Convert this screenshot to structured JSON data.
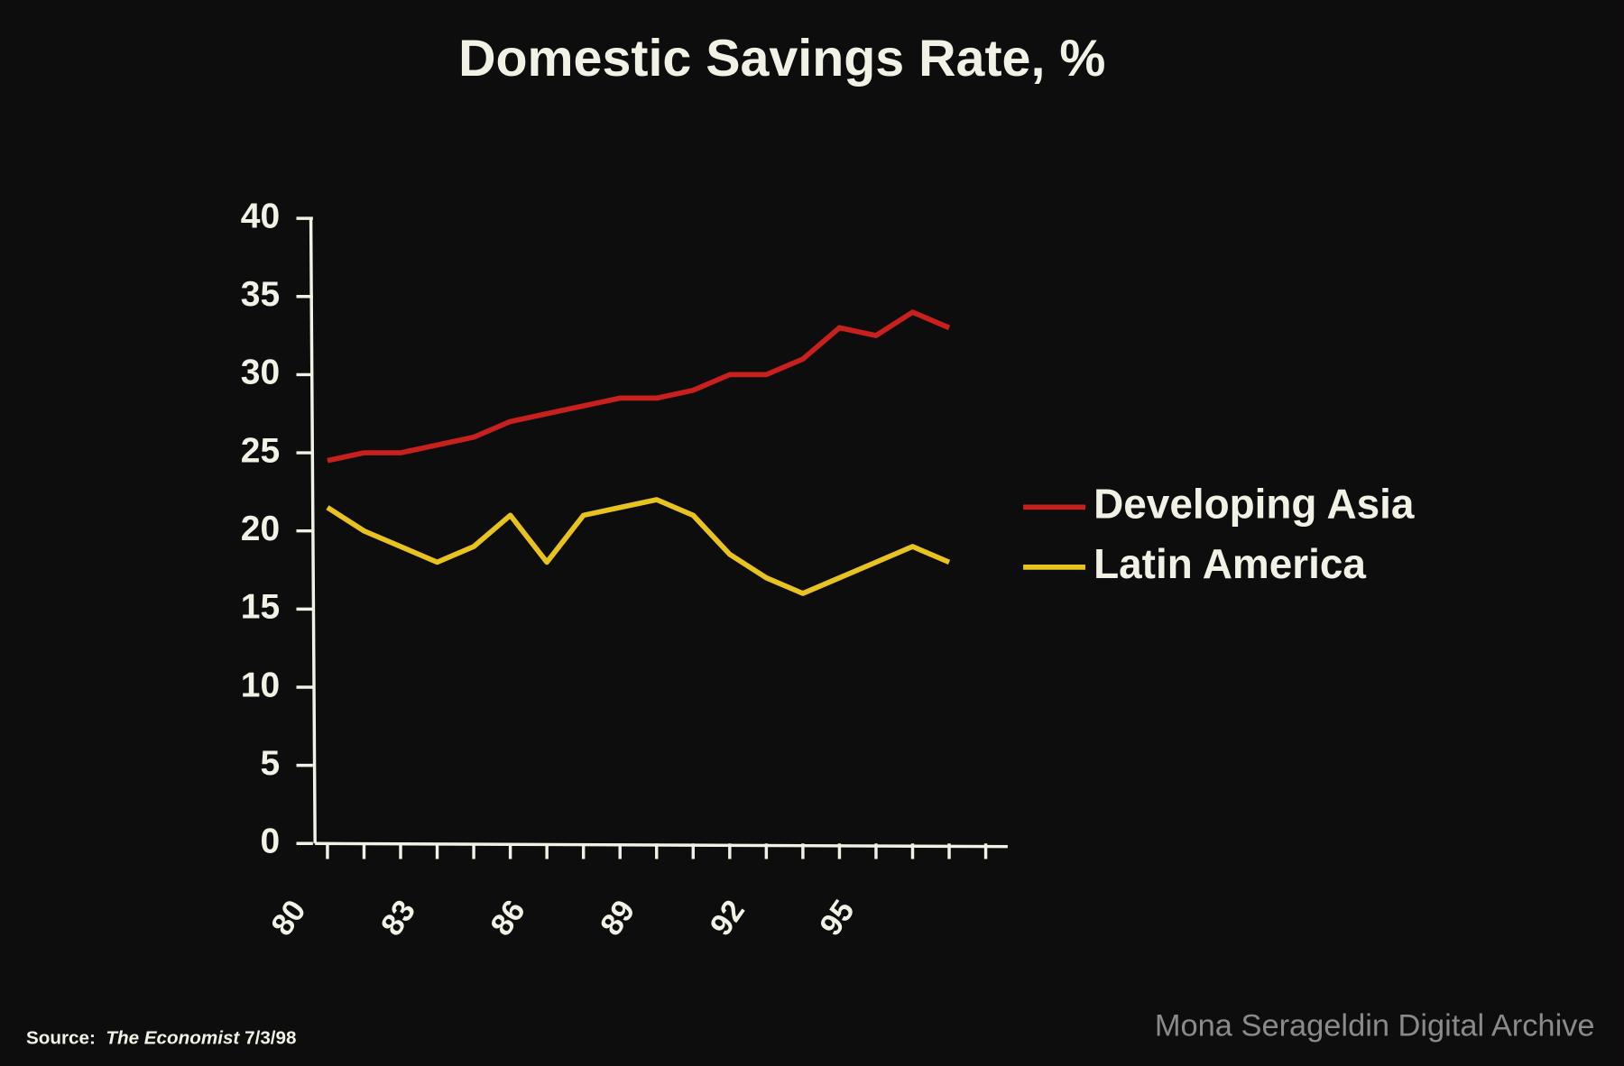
{
  "chart_data": {
    "type": "line",
    "title": "Domestic Savings Rate, %",
    "x": [
      1980,
      1981,
      1982,
      1983,
      1984,
      1985,
      1986,
      1987,
      1988,
      1989,
      1990,
      1991,
      1992,
      1993,
      1994,
      1995,
      1996,
      1997
    ],
    "series": [
      {
        "name": "Developing Asia",
        "color": "#c8201c",
        "values": [
          24.5,
          25,
          25,
          25.5,
          26,
          27,
          27.5,
          28,
          28.5,
          28.5,
          29,
          30,
          30,
          31,
          33,
          32.5,
          34,
          33
        ]
      },
      {
        "name": "Latin America",
        "color": "#e8c21e",
        "values": [
          21.5,
          20,
          19,
          18,
          19,
          21,
          18,
          21,
          21.5,
          22,
          21,
          18.5,
          17,
          16,
          17,
          18,
          19,
          18
        ]
      }
    ],
    "xlim": [
      1979.66,
      1998.6
    ],
    "xticks": [
      {
        "value": 1980,
        "label": "80"
      },
      {
        "value": 1981,
        "label": null
      },
      {
        "value": 1982,
        "label": null
      },
      {
        "value": 1983,
        "label": "83"
      },
      {
        "value": 1984,
        "label": null
      },
      {
        "value": 1985,
        "label": null
      },
      {
        "value": 1986,
        "label": "86"
      },
      {
        "value": 1987,
        "label": null
      },
      {
        "value": 1988,
        "label": null
      },
      {
        "value": 1989,
        "label": "89"
      },
      {
        "value": 1990,
        "label": null
      },
      {
        "value": 1991,
        "label": null
      },
      {
        "value": 1992,
        "label": "92"
      },
      {
        "value": 1993,
        "label": null
      },
      {
        "value": 1994,
        "label": null
      },
      {
        "value": 1995,
        "label": "95"
      },
      {
        "value": 1996,
        "label": null
      },
      {
        "value": 1997,
        "label": null
      },
      {
        "value": 1998,
        "label": null
      }
    ],
    "ylim": [
      0,
      40
    ],
    "yticks": [
      0,
      5,
      10,
      15,
      20,
      25,
      30,
      35,
      40
    ],
    "legend": "right",
    "source": {
      "label": "Source:",
      "publication": "The Economist",
      "date": "7/3/98"
    },
    "watermark": "Mona Serageldin Digital Archive"
  }
}
